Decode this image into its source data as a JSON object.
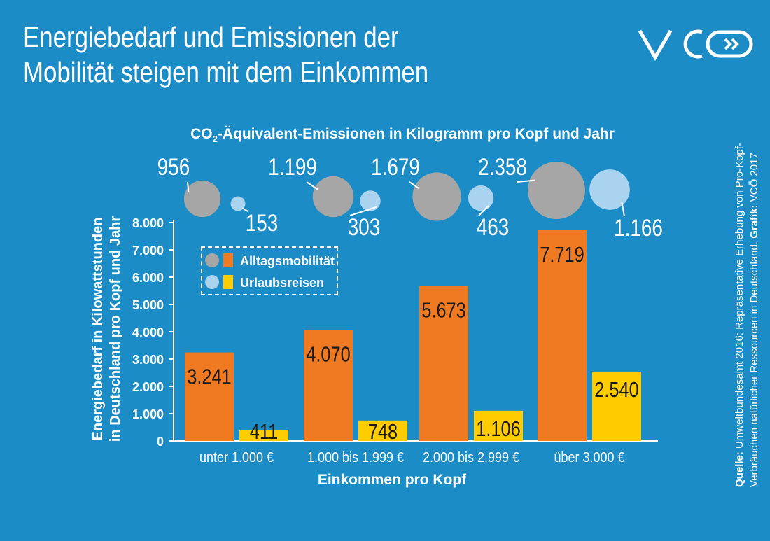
{
  "header": {
    "title_line1": "Energiebedarf und Emissionen der",
    "title_line2": "Mobilität steigen mit dem Einkommen",
    "logo_icon": "vcoe-logo-icon"
  },
  "colors": {
    "background": "#1b8cc5",
    "alltag": "#f07a22",
    "urlaub": "#ffcc00",
    "bubble_alltag": "#a6a6a6",
    "bubble_urlaub": "#a9d3ef"
  },
  "co2": {
    "title_prefix": "CO",
    "title_sub": "2",
    "title_suffix": "-Äquivalent-Emissionen in Kilogramm pro Kopf und Jahr",
    "alltag_values": [
      956,
      1199,
      1679,
      2358
    ],
    "alltag_labels": [
      "956",
      "1.199",
      "1.679",
      "2.358"
    ],
    "urlaub_values": [
      153,
      303,
      463,
      1166
    ],
    "urlaub_labels": [
      "153",
      "303",
      "463",
      "1.166"
    ]
  },
  "chart_data": {
    "type": "bar",
    "categories": [
      "unter 1.000 €",
      "1.000 bis 1.999 €",
      "2.000 bis 2.999 €",
      "über 3.000 €"
    ],
    "series": [
      {
        "name": "Alltagsmobilität",
        "values": [
          3241,
          4070,
          5673,
          7719
        ],
        "labels": [
          "3.241",
          "4.070",
          "5.673",
          "7.719"
        ]
      },
      {
        "name": "Urlaubsreisen",
        "values": [
          411,
          748,
          1106,
          2540
        ],
        "labels": [
          "411",
          "748",
          "1.106",
          "2.540"
        ]
      }
    ],
    "ylim": [
      0,
      8000
    ],
    "yticks": [
      0,
      1000,
      2000,
      3000,
      4000,
      5000,
      6000,
      7000,
      8000
    ],
    "ytick_labels": [
      "0",
      "1.000",
      "2.000",
      "3.000",
      "4.000",
      "5.000",
      "6.000",
      "7.000",
      "8.000"
    ],
    "ylabel_line1": "Energiebedarf in Kilowattstunden",
    "ylabel_line2": "in Deutschland pro Kopf und Jahr",
    "xlabel": "Einkommen pro Kopf",
    "legend_placement": "top-left",
    "grid": false
  },
  "source": {
    "label1": "Quelle:",
    "text1": " Umweltbundesamt 2016: Repräsentative Erhebung von Pro-Kopf-",
    "text2": "Verbräuchen natürlicher Ressourcen in Deutschland. ",
    "label2": "Grafik:",
    "text3": " VCÖ 2017"
  }
}
